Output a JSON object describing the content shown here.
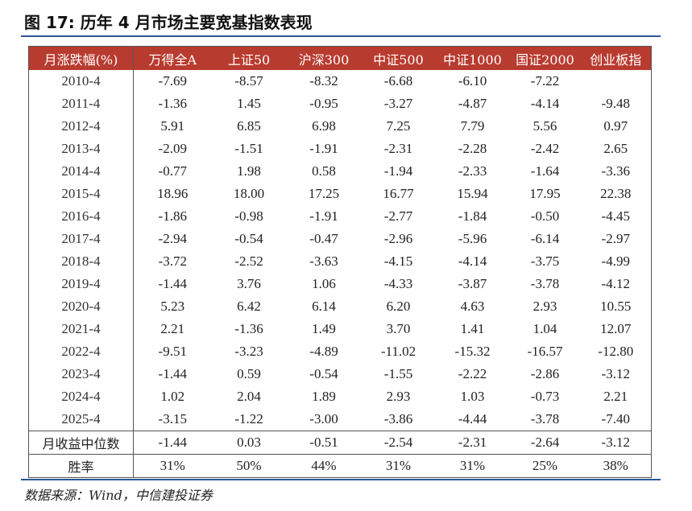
{
  "title": "图 17:  历年 4 月市场主要宽基指数表现",
  "table": {
    "header": [
      "月涨跌幅(%)",
      "万得全A",
      "上证50",
      "沪深300",
      "中证500",
      "中证1000",
      "国证2000",
      "创业板指"
    ],
    "rows": [
      [
        "2010-4",
        "-7.69",
        "-8.57",
        "-8.32",
        "-6.68",
        "-6.10",
        "-7.22",
        null
      ],
      [
        "2011-4",
        "-1.36",
        "1.45",
        "-0.95",
        "-3.27",
        "-4.87",
        "-4.14",
        "-9.48"
      ],
      [
        "2012-4",
        "5.91",
        "6.85",
        "6.98",
        "7.25",
        "7.79",
        "5.56",
        "0.97"
      ],
      [
        "2013-4",
        "-2.09",
        "-1.51",
        "-1.91",
        "-2.31",
        "-2.28",
        "-2.42",
        "2.65"
      ],
      [
        "2014-4",
        "-0.77",
        "1.98",
        "0.58",
        "-1.94",
        "-2.33",
        "-1.64",
        "-3.36"
      ],
      [
        "2015-4",
        "18.96",
        "18.00",
        "17.25",
        "16.77",
        "15.94",
        "17.95",
        "22.38"
      ],
      [
        "2016-4",
        "-1.86",
        "-0.98",
        "-1.91",
        "-2.77",
        "-1.84",
        "-0.50",
        "-4.45"
      ],
      [
        "2017-4",
        "-2.94",
        "-0.54",
        "-0.47",
        "-2.96",
        "-5.96",
        "-6.14",
        "-2.97"
      ],
      [
        "2018-4",
        "-3.72",
        "-2.52",
        "-3.63",
        "-4.15",
        "-4.14",
        "-3.75",
        "-4.99"
      ],
      [
        "2019-4",
        "-1.44",
        "3.76",
        "1.06",
        "-4.33",
        "-3.87",
        "-3.78",
        "-4.12"
      ],
      [
        "2020-4",
        "5.23",
        "6.42",
        "6.14",
        "6.20",
        "4.63",
        "2.93",
        "10.55"
      ],
      [
        "2021-4",
        "2.21",
        "-1.36",
        "1.49",
        "3.70",
        "1.41",
        "1.04",
        "12.07"
      ],
      [
        "2022-4",
        "-9.51",
        "-3.23",
        "-4.89",
        "-11.02",
        "-15.32",
        "-16.57",
        "-12.80"
      ],
      [
        "2023-4",
        "-1.44",
        "0.59",
        "-0.54",
        "-1.55",
        "-2.22",
        "-2.86",
        "-3.12"
      ],
      [
        "2024-4",
        "1.02",
        "2.04",
        "1.89",
        "2.93",
        "1.03",
        "-0.73",
        "2.21"
      ],
      [
        "2025-4",
        "-3.15",
        "-1.22",
        "-3.00",
        "-3.86",
        "-4.44",
        "-3.78",
        "-7.40"
      ]
    ],
    "summary_rows": [
      [
        "月收益中位数",
        "-1.44",
        "0.03",
        "-0.51",
        "-2.54",
        "-2.31",
        "-2.64",
        "-3.12"
      ],
      [
        "胜率",
        "31%",
        "50%",
        "44%",
        "31%",
        "31%",
        "25%",
        "38%"
      ]
    ]
  },
  "source": "数据来源：Wind，中信建投证券"
}
